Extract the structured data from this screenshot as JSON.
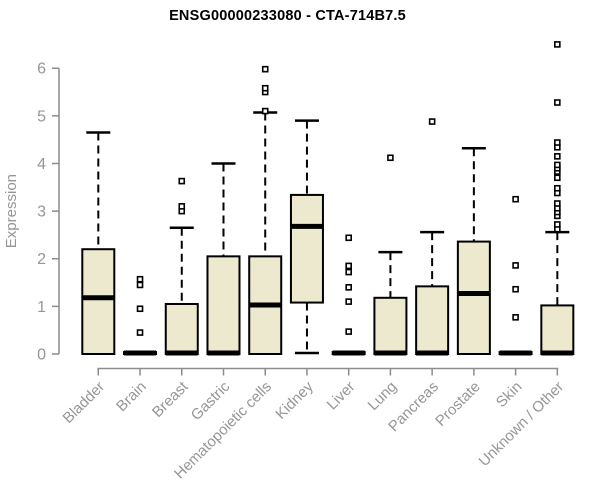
{
  "chart_data": {
    "type": "box",
    "title": "ENSG00000233080 - CTA-714B7.5",
    "xlabel": "",
    "ylabel": "Expression",
    "ylim": [
      0,
      6.6
    ],
    "yticks": [
      0,
      1,
      2,
      3,
      4,
      5,
      6
    ],
    "grid": false,
    "legend": "none",
    "categories": [
      "Bladder",
      "Brain",
      "Breast",
      "Gastric",
      "Hematopoietic cells",
      "Kidney",
      "Liver",
      "Lung",
      "Pancreas",
      "Prostate",
      "Skin",
      "Unknown / Other"
    ],
    "series": [
      {
        "name": "Bladder",
        "low": 0,
        "q1": 0,
        "median": 1.18,
        "q3": 2.2,
        "high": 4.65,
        "outliers": []
      },
      {
        "name": "Brain",
        "low": 0,
        "q1": 0,
        "median": 0.02,
        "q3": 0.04,
        "high": 0.04,
        "outliers": [
          0.45,
          0.95,
          1.45,
          1.57
        ]
      },
      {
        "name": "Breast",
        "low": 0,
        "q1": 0,
        "median": 0.02,
        "q3": 1.05,
        "high": 2.65,
        "outliers": [
          3.0,
          3.1,
          3.63
        ]
      },
      {
        "name": "Gastric",
        "low": 0,
        "q1": 0,
        "median": 0.02,
        "q3": 2.05,
        "high": 4.0,
        "outliers": []
      },
      {
        "name": "Hematopoietic cells",
        "low": 0,
        "q1": 0,
        "median": 1.03,
        "q3": 2.05,
        "high": 5.07,
        "outliers": [
          5.1,
          5.5,
          5.58,
          5.98
        ]
      },
      {
        "name": "Kidney",
        "low": 0.02,
        "q1": 1.08,
        "median": 2.68,
        "q3": 3.34,
        "high": 4.9,
        "outliers": []
      },
      {
        "name": "Liver",
        "low": 0,
        "q1": 0,
        "median": 0.02,
        "q3": 0.04,
        "high": 0.04,
        "outliers": [
          0.47,
          1.1,
          1.4,
          1.72,
          1.85,
          2.44
        ]
      },
      {
        "name": "Lung",
        "low": 0,
        "q1": 0,
        "median": 0.02,
        "q3": 1.18,
        "high": 2.14,
        "outliers": [
          4.12
        ]
      },
      {
        "name": "Pancreas",
        "low": 0,
        "q1": 0,
        "median": 0.02,
        "q3": 1.42,
        "high": 2.56,
        "outliers": [
          4.88
        ]
      },
      {
        "name": "Prostate",
        "low": 0,
        "q1": 0,
        "median": 1.27,
        "q3": 2.36,
        "high": 4.32,
        "outliers": []
      },
      {
        "name": "Skin",
        "low": 0,
        "q1": 0,
        "median": 0.02,
        "q3": 0.04,
        "high": 0.04,
        "outliers": [
          0.77,
          1.36,
          1.86,
          3.25
        ]
      },
      {
        "name": "Unknown / Other",
        "low": 0,
        "q1": 0,
        "median": 0.02,
        "q3": 1.02,
        "high": 2.56,
        "outliers": [
          2.62,
          2.72,
          2.9,
          2.98,
          3.06,
          3.16,
          3.38,
          3.48,
          3.7,
          3.83,
          3.9,
          3.97,
          4.15,
          4.34,
          4.44,
          5.28,
          6.5
        ]
      }
    ],
    "colors": {
      "box_fill": "#EDE9CE",
      "box_stroke": "#000000",
      "median": "#000000",
      "whisker": "#000000",
      "outlier_fill": "#FFFFFF",
      "outlier_stroke": "#000000",
      "axis_line": "#8C8C8C",
      "tick_label": "#969696",
      "axis_title": "#969696",
      "title": "#000000",
      "background": "#FFFFFF"
    }
  }
}
